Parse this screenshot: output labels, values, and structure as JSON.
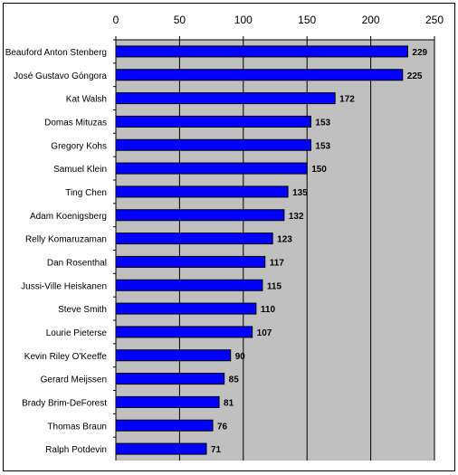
{
  "chart_data": {
    "type": "bar",
    "orientation": "horizontal",
    "title": "",
    "xlabel": "",
    "ylabel": "",
    "xlim": [
      0,
      250
    ],
    "x_ticks": [
      0,
      50,
      100,
      150,
      200,
      250
    ],
    "x_axis_position": "top",
    "grid": true,
    "legend": "none",
    "categories": [
      "Beauford Anton Stenberg",
      "José Gustavo Góngora",
      "Kat Walsh",
      "Domas Mituzas",
      "Gregory Kohs",
      "Samuel Klein",
      "Ting Chen",
      "Adam Koenigsberg",
      "Relly Komaruzaman",
      "Dan Rosenthal",
      "Jussi-Ville Heiskanen",
      "Steve Smith",
      "Lourie Pieterse",
      "Kevin Riley O'Keeffe",
      "Gerard Meijssen",
      "Brady Brim-DeForest",
      "Thomas Braun",
      "Ralph Potdevin"
    ],
    "values": [
      229,
      225,
      172,
      153,
      153,
      150,
      135,
      132,
      123,
      117,
      115,
      110,
      107,
      90,
      85,
      81,
      76,
      71
    ],
    "colors": {
      "bar": "#0000ff",
      "plot_background": "#c0c0c0",
      "gridline": "#000000"
    }
  }
}
